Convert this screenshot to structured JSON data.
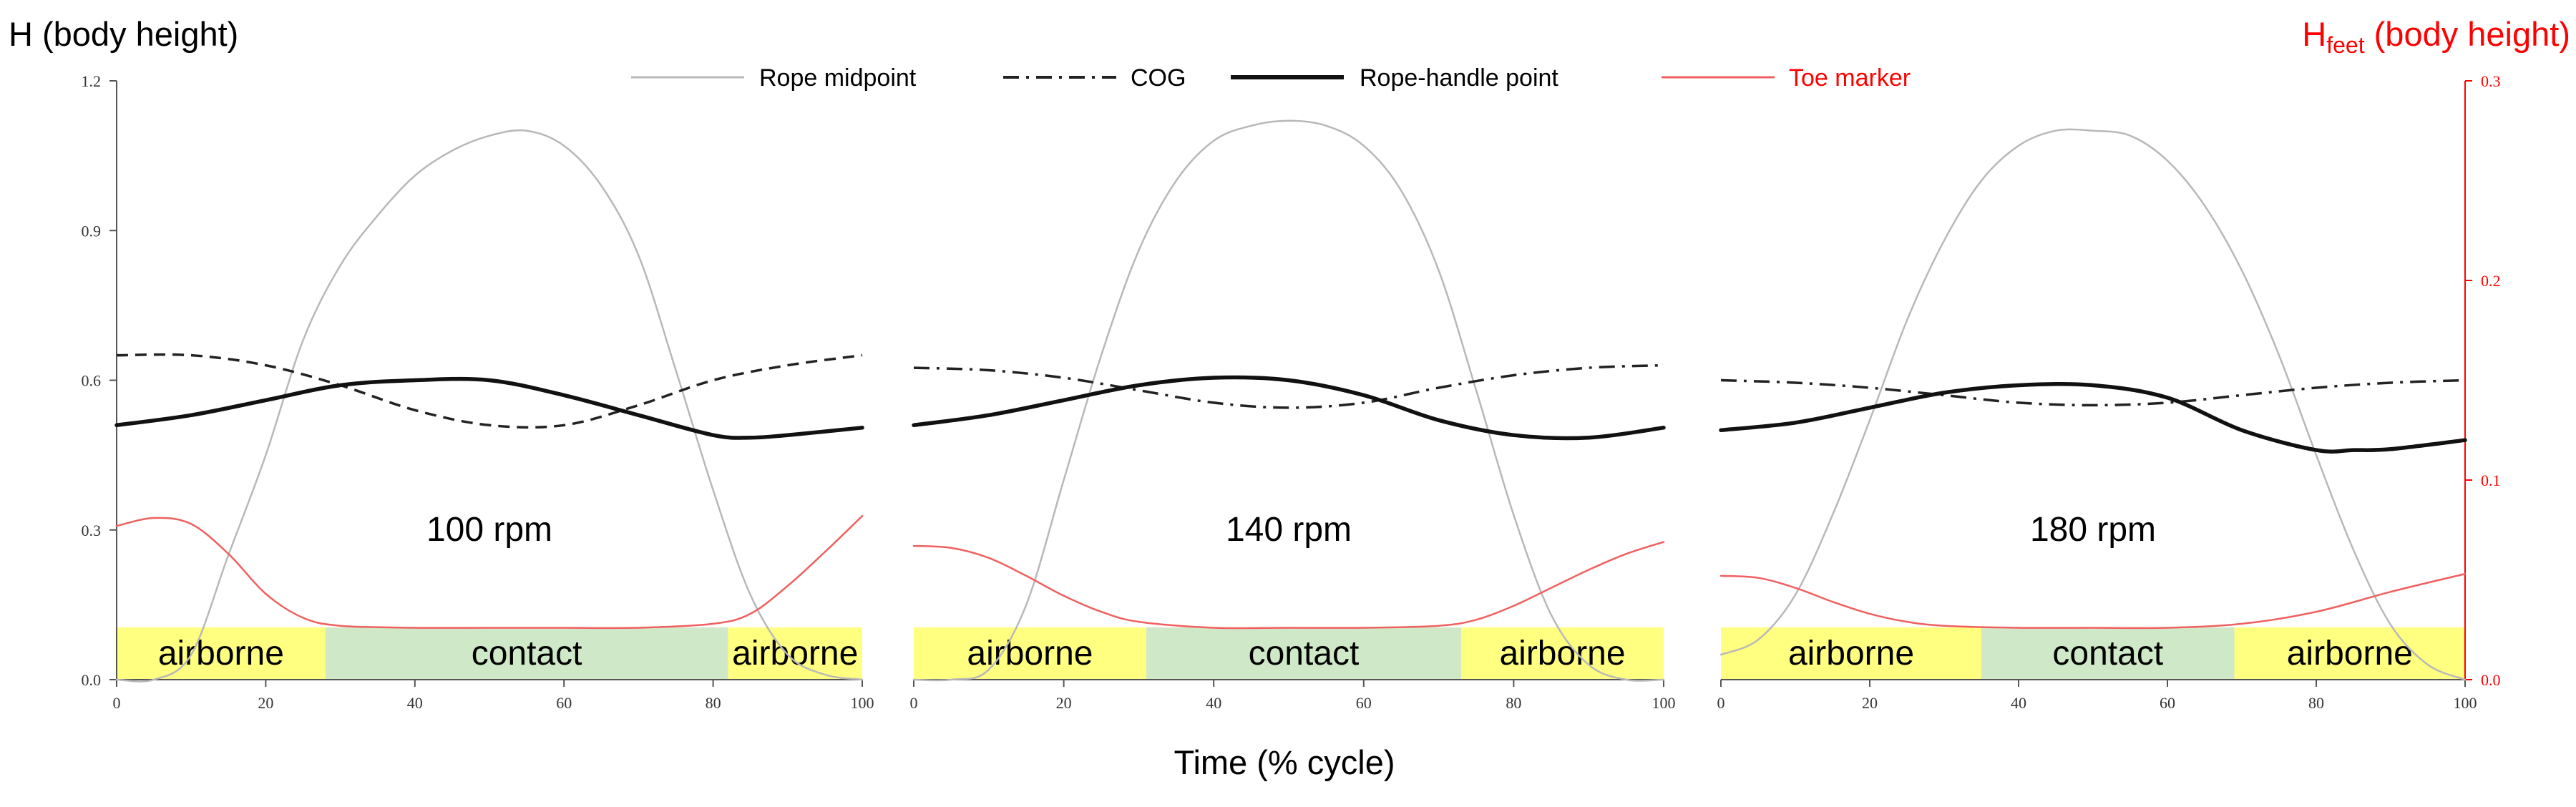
{
  "colors": {
    "rope_midpoint": "#b8b8b8",
    "cog": "#222222",
    "rope_handle": "#111111",
    "toe_marker": "#f06060",
    "airborne_fill": "#ffff80",
    "contact_fill": "#cfe8c7",
    "axis_black": "#555555",
    "axis_red": "#ff0000"
  },
  "left_axis_title": "H (body height)",
  "right_axis_title_main": "H",
  "right_axis_title_sub": "feet",
  "right_axis_title_rest": " (body height)",
  "x_axis_title": "Time (% cycle)",
  "legend": [
    {
      "label": "Rope midpoint",
      "style": "thin-gray"
    },
    {
      "label": "COG",
      "style": "dash-dot"
    },
    {
      "label": "Rope-handle point",
      "style": "thick-solid"
    },
    {
      "label": "Toe marker",
      "style": "thin-red"
    }
  ],
  "chart_data": [
    {
      "type": "line",
      "label": "100 rpm",
      "xlim": [
        0,
        100
      ],
      "ylim": [
        0,
        1.2
      ],
      "y2lim": [
        0,
        0.3
      ],
      "x_ticks": [
        0,
        20,
        40,
        60,
        80,
        100
      ],
      "y_ticks": [
        "0.0",
        "0.3",
        "0.6",
        "0.9",
        "1.2"
      ],
      "y2_ticks": null,
      "phases": [
        {
          "label": "airborne",
          "start": 0,
          "end": 28,
          "kind": "airborne"
        },
        {
          "label": "contact",
          "start": 28,
          "end": 82,
          "kind": "contact"
        },
        {
          "label": "airborne",
          "start": 82,
          "end": 100,
          "kind": "airborne"
        }
      ],
      "cog_style": "dashed",
      "series": [
        {
          "name": "Rope midpoint",
          "axis": "left",
          "x": [
            0,
            5,
            10,
            15,
            20,
            25,
            30,
            35,
            40,
            45,
            50,
            55,
            60,
            65,
            70,
            75,
            80,
            85,
            90,
            95,
            100
          ],
          "y": [
            0.0,
            0.0,
            0.05,
            0.25,
            0.45,
            0.68,
            0.83,
            0.93,
            1.01,
            1.06,
            1.09,
            1.1,
            1.07,
            0.99,
            0.85,
            0.62,
            0.38,
            0.17,
            0.05,
            0.01,
            0.0
          ]
        },
        {
          "name": "COG",
          "axis": "left",
          "x": [
            0,
            10,
            20,
            30,
            40,
            50,
            60,
            70,
            80,
            90,
            100
          ],
          "y": [
            0.65,
            0.65,
            0.63,
            0.59,
            0.54,
            0.51,
            0.51,
            0.55,
            0.6,
            0.63,
            0.65
          ]
        },
        {
          "name": "Rope-handle point",
          "axis": "left",
          "x": [
            0,
            10,
            20,
            30,
            40,
            50,
            60,
            70,
            80,
            85,
            90,
            100
          ],
          "y": [
            0.51,
            0.53,
            0.56,
            0.59,
            0.6,
            0.6,
            0.57,
            0.53,
            0.49,
            0.485,
            0.49,
            0.505
          ]
        },
        {
          "name": "Toe marker",
          "axis": "right",
          "x": [
            0,
            5,
            10,
            15,
            20,
            25,
            30,
            40,
            50,
            60,
            70,
            80,
            85,
            90,
            95,
            100
          ],
          "y": [
            0.077,
            0.081,
            0.078,
            0.063,
            0.043,
            0.031,
            0.027,
            0.026,
            0.026,
            0.026,
            0.026,
            0.028,
            0.033,
            0.047,
            0.064,
            0.082
          ]
        }
      ]
    },
    {
      "type": "line",
      "label": "140 rpm",
      "xlim": [
        0,
        100
      ],
      "ylim": [
        0,
        1.2
      ],
      "y2lim": [
        0,
        0.3
      ],
      "x_ticks": [
        0,
        20,
        40,
        60,
        80,
        100
      ],
      "y_ticks": null,
      "y2_ticks": null,
      "phases": [
        {
          "label": "airborne",
          "start": 0,
          "end": 31,
          "kind": "airborne"
        },
        {
          "label": "contact",
          "start": 31,
          "end": 73,
          "kind": "contact"
        },
        {
          "label": "airborne",
          "start": 73,
          "end": 100,
          "kind": "airborne"
        }
      ],
      "cog_style": "dashdot",
      "series": [
        {
          "name": "Rope midpoint",
          "axis": "left",
          "x": [
            0,
            5,
            10,
            15,
            20,
            25,
            30,
            35,
            40,
            45,
            50,
            55,
            60,
            65,
            70,
            75,
            80,
            85,
            90,
            95,
            100
          ],
          "y": [
            0.0,
            0.0,
            0.02,
            0.15,
            0.4,
            0.65,
            0.86,
            1.0,
            1.08,
            1.11,
            1.12,
            1.11,
            1.07,
            0.98,
            0.82,
            0.58,
            0.33,
            0.13,
            0.03,
            0.0,
            0.0
          ]
        },
        {
          "name": "COG",
          "axis": "left",
          "x": [
            0,
            10,
            20,
            30,
            40,
            50,
            60,
            70,
            80,
            90,
            100
          ],
          "y": [
            0.625,
            0.62,
            0.605,
            0.58,
            0.555,
            0.545,
            0.555,
            0.585,
            0.61,
            0.625,
            0.63
          ]
        },
        {
          "name": "Rope-handle point",
          "axis": "left",
          "x": [
            0,
            10,
            20,
            30,
            40,
            50,
            60,
            70,
            80,
            90,
            100
          ],
          "y": [
            0.51,
            0.53,
            0.56,
            0.59,
            0.605,
            0.6,
            0.57,
            0.52,
            0.49,
            0.485,
            0.505
          ]
        },
        {
          "name": "Toe marker",
          "axis": "right",
          "x": [
            0,
            5,
            10,
            15,
            20,
            25,
            30,
            40,
            50,
            60,
            70,
            75,
            80,
            85,
            90,
            95,
            100
          ],
          "y": [
            0.067,
            0.066,
            0.061,
            0.052,
            0.042,
            0.034,
            0.029,
            0.026,
            0.026,
            0.026,
            0.027,
            0.03,
            0.037,
            0.046,
            0.055,
            0.063,
            0.069
          ]
        }
      ]
    },
    {
      "type": "line",
      "label": "180 rpm",
      "xlim": [
        0,
        100
      ],
      "ylim": [
        0,
        1.2
      ],
      "y2lim": [
        0,
        0.3
      ],
      "x_ticks": [
        0,
        20,
        40,
        60,
        80,
        100
      ],
      "y_ticks": null,
      "y2_ticks": [
        "0.0",
        "0.1",
        "0.2",
        "0.3"
      ],
      "phases": [
        {
          "label": "airborne",
          "start": 0,
          "end": 35,
          "kind": "airborne"
        },
        {
          "label": "contact",
          "start": 35,
          "end": 69,
          "kind": "contact"
        },
        {
          "label": "airborne",
          "start": 69,
          "end": 100,
          "kind": "airborne"
        }
      ],
      "cog_style": "dashdot",
      "series": [
        {
          "name": "Rope midpoint",
          "axis": "left",
          "x": [
            0,
            5,
            10,
            15,
            20,
            25,
            30,
            35,
            40,
            45,
            50,
            55,
            60,
            65,
            70,
            75,
            80,
            85,
            90,
            95,
            100
          ],
          "y": [
            0.05,
            0.08,
            0.17,
            0.33,
            0.52,
            0.72,
            0.88,
            1.0,
            1.07,
            1.1,
            1.1,
            1.09,
            1.04,
            0.95,
            0.82,
            0.65,
            0.45,
            0.26,
            0.11,
            0.03,
            0.0
          ]
        },
        {
          "name": "COG",
          "axis": "left",
          "x": [
            0,
            10,
            20,
            30,
            40,
            50,
            60,
            70,
            80,
            90,
            100
          ],
          "y": [
            0.6,
            0.595,
            0.585,
            0.57,
            0.555,
            0.55,
            0.555,
            0.57,
            0.585,
            0.595,
            0.6
          ]
        },
        {
          "name": "Rope-handle point",
          "axis": "left",
          "x": [
            0,
            10,
            20,
            30,
            40,
            50,
            60,
            70,
            80,
            85,
            90,
            100
          ],
          "y": [
            0.5,
            0.515,
            0.545,
            0.575,
            0.59,
            0.59,
            0.565,
            0.5,
            0.46,
            0.46,
            0.462,
            0.48
          ]
        },
        {
          "name": "Toe marker",
          "axis": "right",
          "x": [
            0,
            5,
            10,
            15,
            20,
            25,
            30,
            40,
            50,
            60,
            70,
            80,
            90,
            100
          ],
          "y": [
            0.052,
            0.051,
            0.046,
            0.039,
            0.033,
            0.029,
            0.027,
            0.026,
            0.026,
            0.026,
            0.028,
            0.034,
            0.044,
            0.053
          ]
        }
      ]
    }
  ]
}
